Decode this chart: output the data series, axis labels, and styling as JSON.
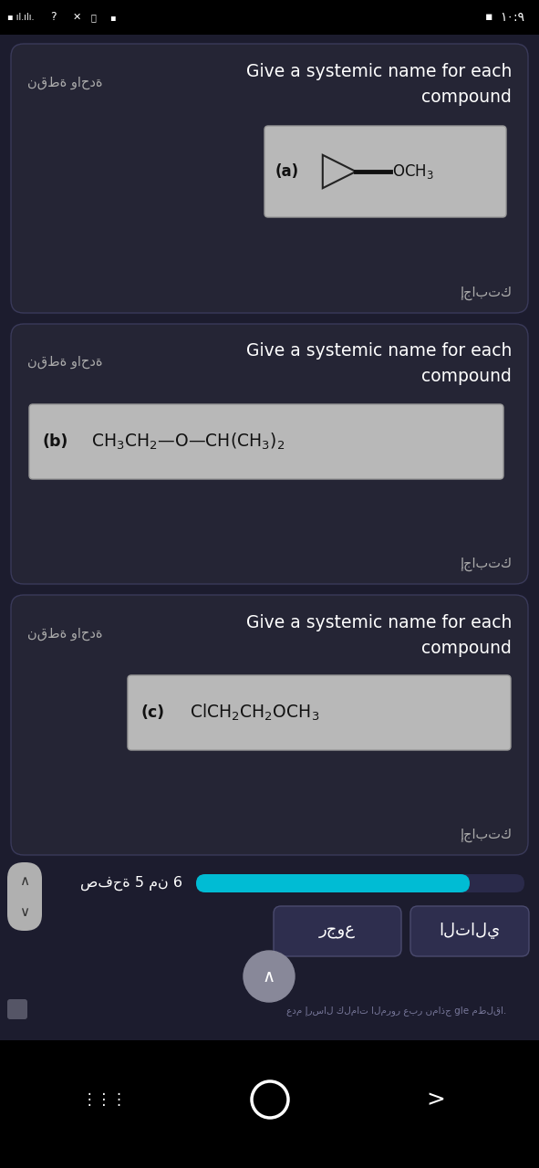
{
  "bg_color": "#1c1c2e",
  "card_bg": "#252535",
  "card_border": "#3a3a5a",
  "text_white": "#ffffff",
  "text_gray": "#aaaaaa",
  "text_arabic": "#aaaaaa",
  "formula_bg": "#c0c0c0",
  "formula_text": "#111111",
  "status_bar_bg": "#000000",
  "progress_color": "#00bcd4",
  "button_bg": "#2e2e4e",
  "button_text": "#ffffff",
  "nav_bar_bg": "#000000",
  "page_label": "صفحة 5 من 6",
  "btn_next": "التالي",
  "btn_back": "رجوع",
  "card1_arabic": "نقطة واحدة",
  "card1_answer": "إجابتك",
  "card2_arabic": "نقطة واحدة",
  "card2_answer": "إجابتك",
  "card3_arabic": "نقطة واحدة",
  "card3_answer": "إجابتك",
  "footer_text": "عدم إرسال كلمات المرور عبر نماذج gle مطلقا."
}
